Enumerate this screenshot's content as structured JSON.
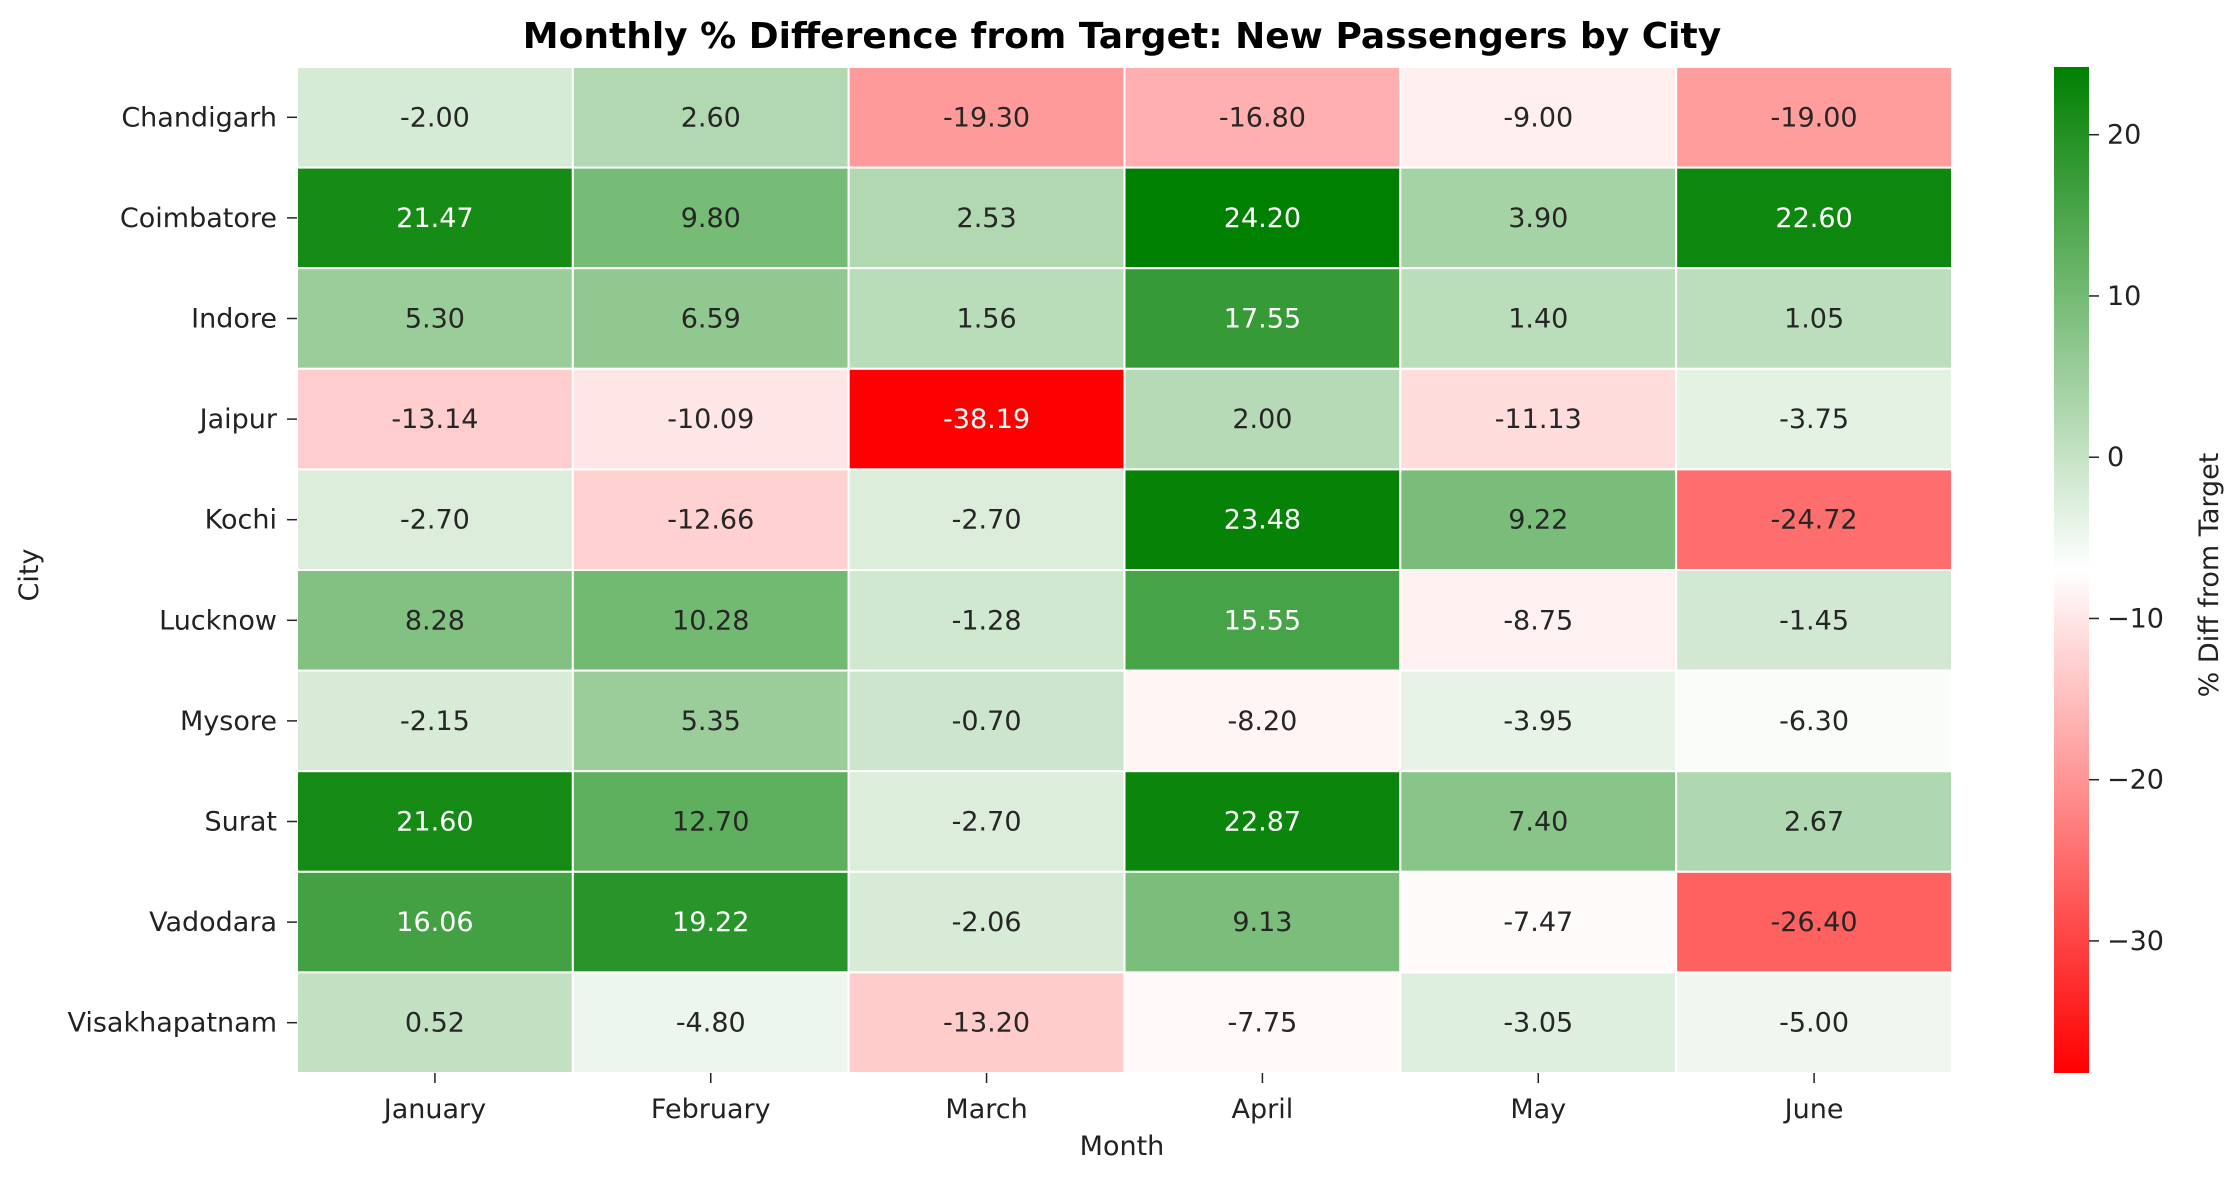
{
  "chart_data": {
    "type": "heatmap",
    "title": "Monthly % Difference from Target: New Passengers by City",
    "xlabel": "Month",
    "ylabel": "City",
    "columns": [
      "January",
      "February",
      "March",
      "April",
      "May",
      "June"
    ],
    "rows": [
      "Chandigarh",
      "Coimbatore",
      "Indore",
      "Jaipur",
      "Kochi",
      "Lucknow",
      "Mysore",
      "Surat",
      "Vadodara",
      "Visakhapatnam"
    ],
    "values": [
      [
        -2.0,
        2.6,
        -19.3,
        -16.8,
        -9.0,
        -19.0
      ],
      [
        21.47,
        9.8,
        2.53,
        24.2,
        3.9,
        22.6
      ],
      [
        5.3,
        6.59,
        1.56,
        17.55,
        1.4,
        1.05
      ],
      [
        -13.14,
        -10.09,
        -38.19,
        2.0,
        -11.13,
        -3.75
      ],
      [
        -2.7,
        -12.66,
        -2.7,
        23.48,
        9.22,
        -24.72
      ],
      [
        8.28,
        10.28,
        -1.28,
        15.55,
        -8.75,
        -1.45
      ],
      [
        -2.15,
        5.35,
        -0.7,
        -8.2,
        -3.95,
        -6.3
      ],
      [
        21.6,
        12.7,
        -2.7,
        22.87,
        7.4,
        2.67
      ],
      [
        16.06,
        19.22,
        -2.06,
        9.13,
        -7.47,
        -26.4
      ],
      [
        0.52,
        -4.8,
        -13.2,
        -7.75,
        -3.05,
        -5.0
      ]
    ],
    "value_format": "0.00",
    "colorbar": {
      "label": "% Diff from Target",
      "min": -38.19,
      "max": 24.2,
      "center": -7.0,
      "ticks": [
        -30,
        -20,
        -10,
        0,
        10,
        20
      ],
      "tick_labels": [
        "−30",
        "−20",
        "−10",
        "0",
        "10",
        "20"
      ],
      "colors": {
        "low": "#ff0000",
        "mid": "#ffffff",
        "high": "#008000"
      }
    },
    "grid_line_color": "#ffffff"
  }
}
